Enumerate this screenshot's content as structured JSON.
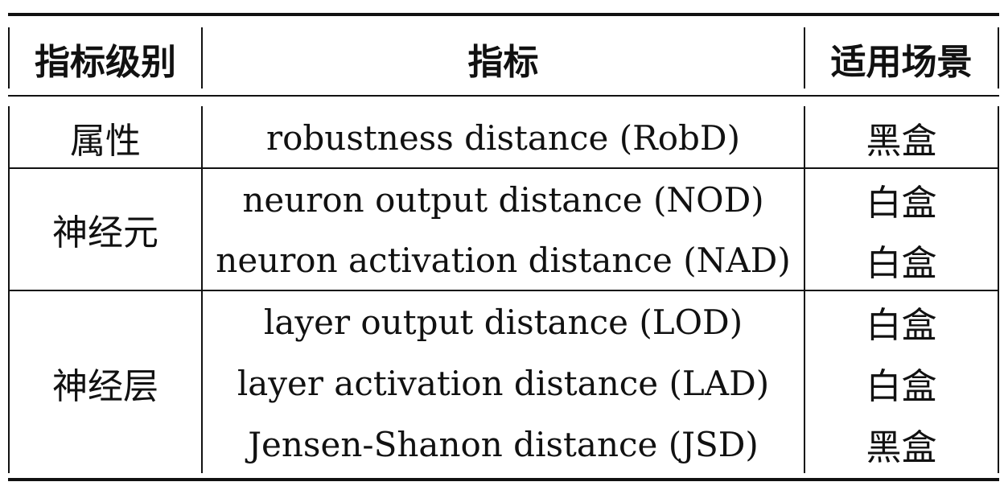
{
  "table": {
    "headers": {
      "level": "指标级别",
      "metric": "指标",
      "scenario": "适用场景"
    },
    "groups": [
      {
        "level": "属性",
        "rows": [
          {
            "metric": "robustness distance (RobD)",
            "scenario": "黑盒"
          }
        ]
      },
      {
        "level": "神经元",
        "rows": [
          {
            "metric": "neuron output distance (NOD)",
            "scenario": "白盒"
          },
          {
            "metric": "neuron activation distance (NAD)",
            "scenario": "白盒"
          }
        ]
      },
      {
        "level": "神经层",
        "rows": [
          {
            "metric": "layer output distance (LOD)",
            "scenario": "白盒"
          },
          {
            "metric": "layer activation distance (LAD)",
            "scenario": "白盒"
          },
          {
            "metric": "Jensen-Shanon distance (JSD)",
            "scenario": "黑盒"
          }
        ]
      }
    ]
  }
}
